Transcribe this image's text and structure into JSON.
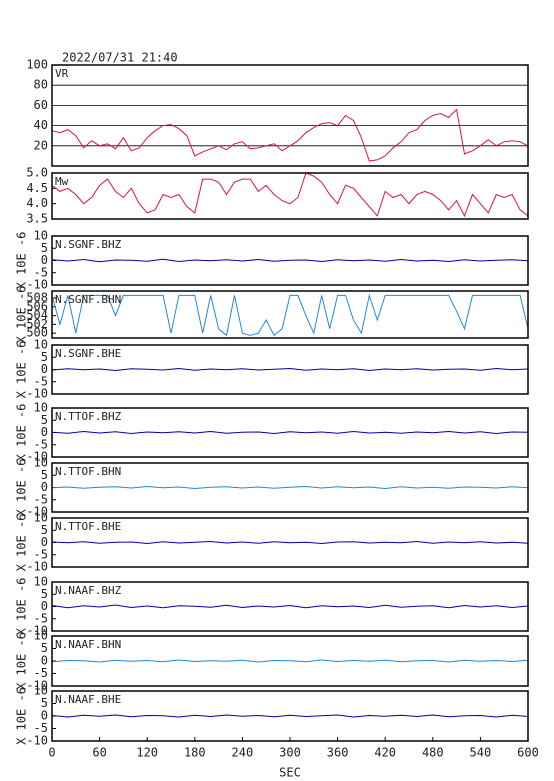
{
  "chart_data": [
    {
      "type": "line",
      "title": "2022/07/31 21:40",
      "label": "VR",
      "color": "#dc143c",
      "xlim": [
        0,
        600
      ],
      "ylim": [
        0,
        100
      ],
      "yticks": [
        20,
        40,
        60,
        80,
        100
      ],
      "grid": true,
      "x": [
        0,
        10,
        20,
        30,
        40,
        50,
        60,
        70,
        80,
        90,
        100,
        110,
        120,
        130,
        140,
        150,
        160,
        170,
        180,
        190,
        200,
        210,
        220,
        230,
        240,
        250,
        260,
        270,
        280,
        290,
        300,
        310,
        320,
        330,
        340,
        350,
        360,
        370,
        380,
        390,
        400,
        410,
        420,
        430,
        440,
        450,
        460,
        470,
        480,
        490,
        500,
        510,
        520,
        530,
        540,
        550,
        560,
        570,
        580,
        590,
        600
      ],
      "values": [
        35,
        33,
        36,
        30,
        18,
        25,
        20,
        22,
        17,
        28,
        15,
        18,
        28,
        35,
        40,
        41,
        37,
        30,
        10,
        14,
        17,
        20,
        16,
        22,
        24,
        17,
        18,
        20,
        22,
        15,
        20,
        25,
        33,
        38,
        42,
        43,
        40,
        50,
        45,
        28,
        5,
        6,
        10,
        18,
        24,
        33,
        36,
        45,
        50,
        52,
        48,
        56,
        12,
        15,
        20,
        26,
        20,
        24,
        25,
        24,
        20
      ]
    },
    {
      "type": "line",
      "label": "Mw",
      "color": "#dc143c",
      "xlim": [
        0,
        600
      ],
      "ylim": [
        3.5,
        5.0
      ],
      "yticks": [
        3.5,
        {
          "value": 4.0,
          "label": "4.0"
        },
        4.5,
        {
          "value": 5.0,
          "label": "5.0"
        }
      ],
      "x": [
        0,
        10,
        20,
        30,
        40,
        50,
        60,
        70,
        80,
        90,
        100,
        110,
        120,
        130,
        140,
        150,
        160,
        170,
        180,
        190,
        200,
        210,
        220,
        230,
        240,
        250,
        260,
        270,
        280,
        290,
        300,
        310,
        320,
        330,
        340,
        350,
        360,
        370,
        380,
        390,
        400,
        410,
        420,
        430,
        440,
        450,
        460,
        470,
        480,
        490,
        500,
        510,
        520,
        530,
        540,
        550,
        560,
        570,
        580,
        590,
        600
      ],
      "values": [
        4.6,
        4.4,
        4.5,
        4.3,
        4.0,
        4.2,
        4.6,
        4.8,
        4.4,
        4.2,
        4.5,
        4.0,
        3.7,
        3.8,
        4.3,
        4.2,
        4.3,
        3.9,
        3.7,
        4.8,
        4.8,
        4.7,
        4.3,
        4.7,
        4.8,
        4.8,
        4.4,
        4.6,
        4.3,
        4.1,
        4.0,
        4.2,
        5.0,
        4.9,
        4.7,
        4.3,
        4.0,
        4.6,
        4.5,
        4.2,
        3.9,
        3.6,
        4.4,
        4.2,
        4.3,
        4.0,
        4.3,
        4.4,
        4.3,
        4.1,
        3.8,
        4.1,
        3.6,
        4.3,
        4.0,
        3.7,
        4.3,
        4.2,
        4.3,
        3.8,
        3.6
      ]
    },
    {
      "type": "line",
      "label": "N.SGNF.BHZ",
      "ylabel": "X 10E -6",
      "color": "#0000aa",
      "xlim": [
        0,
        600
      ],
      "ylim": [
        -10,
        10
      ],
      "yticks": [
        -10,
        -5,
        0,
        5,
        10
      ],
      "x": [
        0,
        20,
        40,
        60,
        80,
        100,
        120,
        140,
        160,
        180,
        200,
        220,
        240,
        260,
        280,
        300,
        320,
        340,
        360,
        380,
        400,
        420,
        440,
        460,
        480,
        500,
        520,
        540,
        560,
        580,
        600
      ],
      "values": [
        0.3,
        -0.2,
        0.4,
        -0.5,
        0.2,
        0.1,
        -0.3,
        0.5,
        -0.4,
        0.2,
        -0.1,
        0.3,
        -0.2,
        0.4,
        -0.3,
        0.1,
        0.2,
        -0.4,
        0.3,
        -0.1,
        0.2,
        -0.3,
        0.4,
        -0.2,
        0.1,
        -0.4,
        0.3,
        -0.2,
        0.1,
        0.3,
        -0.1
      ]
    },
    {
      "type": "line",
      "label": "N.SGNF.BHN",
      "ylabel": "X 10E -6",
      "color": "#2288dd",
      "xlim": [
        0,
        600
      ],
      "ylim": [
        498.9,
        509.6
      ],
      "yticks": [
        500,
        502,
        504,
        506,
        508
      ],
      "x": [
        0,
        10,
        20,
        30,
        40,
        50,
        60,
        70,
        80,
        90,
        100,
        110,
        120,
        130,
        140,
        150,
        160,
        170,
        180,
        190,
        200,
        210,
        220,
        230,
        240,
        250,
        260,
        270,
        280,
        290,
        300,
        310,
        320,
        330,
        340,
        350,
        360,
        370,
        380,
        390,
        400,
        410,
        420,
        430,
        440,
        450,
        460,
        470,
        480,
        490,
        500,
        510,
        520,
        530,
        540,
        550,
        560,
        570,
        580,
        590,
        600
      ],
      "values": [
        508.6,
        502,
        508.6,
        500,
        508.6,
        508.6,
        508.6,
        508.6,
        504,
        508.6,
        508.6,
        508.6,
        508.6,
        508.6,
        508.6,
        500,
        508.6,
        508.6,
        508.6,
        500,
        508.6,
        501,
        499.5,
        508.6,
        500,
        499.5,
        500,
        503,
        499.5,
        501,
        508.6,
        508.6,
        504,
        500,
        508.6,
        501,
        508.6,
        508.6,
        503,
        500,
        508.6,
        503,
        508.6,
        508.6,
        508.6,
        508.6,
        508.6,
        508.6,
        508.6,
        508.6,
        508.6,
        505,
        501,
        508.6,
        508.6,
        508.6,
        508.6,
        508.6,
        508.6,
        508.6,
        501
      ]
    },
    {
      "type": "line",
      "label": "N.SGNF.BHE",
      "ylabel": "X 10E -6",
      "color": "#0000aa",
      "xlim": [
        0,
        600
      ],
      "ylim": [
        -10,
        10
      ],
      "yticks": [
        -10,
        -5,
        0,
        5,
        10
      ],
      "x": [
        0,
        20,
        40,
        60,
        80,
        100,
        120,
        140,
        160,
        180,
        200,
        220,
        240,
        260,
        280,
        300,
        320,
        340,
        360,
        380,
        400,
        420,
        440,
        460,
        480,
        500,
        520,
        540,
        560,
        580,
        600
      ],
      "values": [
        -0.2,
        0.3,
        -0.1,
        0.2,
        -0.4,
        0.3,
        0.1,
        -0.2,
        0.4,
        -0.3,
        0.2,
        -0.1,
        0.3,
        -0.2,
        0.1,
        0.4,
        -0.3,
        0.2,
        -0.1,
        0.3,
        -0.4,
        0.2,
        -0.1,
        0.3,
        -0.2,
        0.1,
        0.2,
        -0.3,
        0.4,
        -0.1,
        0.2
      ]
    },
    {
      "type": "line",
      "label": "N.TTOF.BHZ",
      "ylabel": "X 10E -6",
      "color": "#0000aa",
      "xlim": [
        0,
        600
      ],
      "ylim": [
        -10,
        10
      ],
      "yticks": [
        -10,
        -5,
        0,
        5,
        10
      ],
      "x": [
        0,
        20,
        40,
        60,
        80,
        100,
        120,
        140,
        160,
        180,
        200,
        220,
        240,
        260,
        280,
        300,
        320,
        340,
        360,
        380,
        400,
        420,
        440,
        460,
        480,
        500,
        520,
        540,
        560,
        580,
        600
      ],
      "values": [
        0.1,
        -0.3,
        0.4,
        -0.2,
        0.3,
        -0.4,
        0.2,
        -0.1,
        0.3,
        -0.2,
        0.4,
        -0.3,
        0.1,
        0.2,
        -0.4,
        0.3,
        -0.1,
        0.2,
        -0.3,
        0.4,
        -0.2,
        0.1,
        -0.3,
        0.2,
        -0.1,
        0.4,
        -0.2,
        0.3,
        -0.4,
        0.2,
        0.1
      ]
    },
    {
      "type": "line",
      "label": "N.TTOF.BHN",
      "ylabel": "X 10E -6",
      "color": "#2288dd",
      "xlim": [
        0,
        600
      ],
      "ylim": [
        -10,
        10
      ],
      "yticks": [
        -10,
        -5,
        0,
        5,
        10
      ],
      "x": [
        0,
        20,
        40,
        60,
        80,
        100,
        120,
        140,
        160,
        180,
        200,
        220,
        240,
        260,
        280,
        300,
        320,
        340,
        360,
        380,
        400,
        420,
        440,
        460,
        480,
        500,
        520,
        540,
        560,
        580,
        600
      ],
      "values": [
        -0.1,
        0.2,
        -0.3,
        0.1,
        0.3,
        -0.2,
        0.4,
        -0.1,
        0.2,
        -0.4,
        0.1,
        0.3,
        -0.2,
        0.2,
        -0.3,
        0.1,
        0.4,
        -0.2,
        0.3,
        -0.1,
        0.2,
        -0.4,
        0.3,
        -0.2,
        0.1,
        -0.3,
        0.2,
        0.1,
        -0.2,
        0.3,
        -0.1
      ]
    },
    {
      "type": "line",
      "label": "N.TTOF.BHE",
      "ylabel": "X 10E -6",
      "color": "#0000aa",
      "xlim": [
        0,
        600
      ],
      "ylim": [
        -10,
        10
      ],
      "yticks": [
        -10,
        -5,
        0,
        5,
        10
      ],
      "x": [
        0,
        20,
        40,
        60,
        80,
        100,
        120,
        140,
        160,
        180,
        200,
        220,
        240,
        260,
        280,
        300,
        320,
        340,
        360,
        380,
        400,
        420,
        440,
        460,
        480,
        500,
        520,
        540,
        560,
        580,
        600
      ],
      "values": [
        0.2,
        -0.1,
        0.3,
        -0.3,
        0.1,
        0.2,
        -0.4,
        0.3,
        -0.2,
        0.1,
        0.4,
        -0.2,
        0.2,
        -0.3,
        0.3,
        -0.1,
        0.1,
        -0.4,
        0.2,
        0.3,
        -0.2,
        0.1,
        -0.1,
        0.4,
        -0.3,
        0.2,
        -0.1,
        0.3,
        -0.2,
        0.1,
        -0.3
      ]
    },
    {
      "type": "line",
      "label": "N.NAAF.BHZ",
      "ylabel": "X 10E -6",
      "color": "#0000aa",
      "xlim": [
        0,
        600
      ],
      "ylim": [
        -10,
        10
      ],
      "yticks": [
        -10,
        -5,
        0,
        5,
        10
      ],
      "x": [
        0,
        20,
        40,
        60,
        80,
        100,
        120,
        140,
        160,
        180,
        200,
        220,
        240,
        260,
        280,
        300,
        320,
        340,
        360,
        380,
        400,
        420,
        440,
        460,
        480,
        500,
        520,
        540,
        560,
        580,
        600
      ],
      "values": [
        0.4,
        -0.5,
        0.3,
        -0.2,
        0.6,
        -0.4,
        0.2,
        -0.5,
        0.3,
        0.1,
        -0.3,
        0.5,
        -0.4,
        0.2,
        -0.2,
        0.4,
        -0.5,
        0.3,
        -0.1,
        0.2,
        -0.4,
        0.5,
        -0.3,
        0.1,
        0.3,
        -0.5,
        0.4,
        -0.2,
        0.3,
        -0.4,
        0.2
      ]
    },
    {
      "type": "line",
      "label": "N.NAAF.BHN",
      "ylabel": "X 10E -6",
      "color": "#2288dd",
      "xlim": [
        0,
        600
      ],
      "ylim": [
        -10,
        10
      ],
      "yticks": [
        -10,
        -5,
        0,
        5,
        10
      ],
      "x": [
        0,
        20,
        40,
        60,
        80,
        100,
        120,
        140,
        160,
        180,
        200,
        220,
        240,
        260,
        280,
        300,
        320,
        340,
        360,
        380,
        400,
        420,
        440,
        460,
        480,
        500,
        520,
        540,
        560,
        580,
        600
      ],
      "values": [
        -0.3,
        0.2,
        0.1,
        -0.4,
        0.3,
        -0.1,
        0.2,
        -0.3,
        0.4,
        -0.2,
        0.1,
        -0.1,
        0.3,
        -0.4,
        0.2,
        0.1,
        -0.3,
        0.4,
        -0.2,
        0.2,
        -0.1,
        0.3,
        -0.3,
        0.1,
        0.2,
        -0.4,
        0.3,
        -0.1,
        0.2,
        -0.2,
        0.3
      ]
    },
    {
      "type": "line",
      "label": "N.NAAF.BHE",
      "ylabel": "X 10E -6",
      "color": "#0000aa",
      "xlim": [
        0,
        600
      ],
      "ylim": [
        -10,
        10
      ],
      "yticks": [
        -10,
        -5,
        0,
        5,
        10
      ],
      "xticks": [
        0,
        60,
        120,
        180,
        240,
        300,
        360,
        420,
        480,
        540,
        600
      ],
      "xlabel": "SEC",
      "x": [
        0,
        20,
        40,
        60,
        80,
        100,
        120,
        140,
        160,
        180,
        200,
        220,
        240,
        260,
        280,
        300,
        320,
        340,
        360,
        380,
        400,
        420,
        440,
        460,
        480,
        500,
        520,
        540,
        560,
        580,
        600
      ],
      "values": [
        0.2,
        -0.4,
        0.3,
        -0.1,
        0.4,
        -0.3,
        0.2,
        0.1,
        -0.4,
        0.3,
        -0.2,
        0.4,
        -0.1,
        0.2,
        -0.3,
        0.3,
        -0.2,
        0.1,
        0.4,
        -0.4,
        0.2,
        -0.1,
        0.3,
        -0.2,
        0.4,
        -0.3,
        0.1,
        0.2,
        -0.4,
        0.3,
        -0.2
      ]
    }
  ]
}
